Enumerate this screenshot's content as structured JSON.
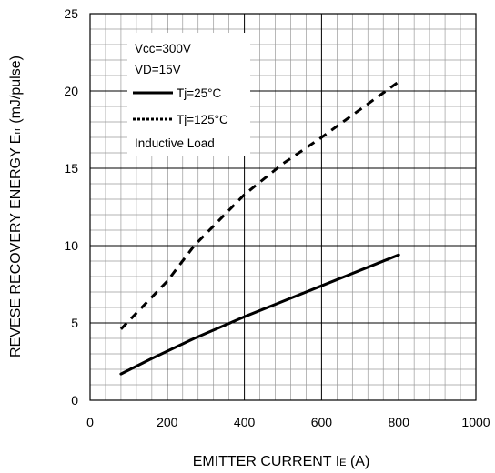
{
  "chart_data": {
    "type": "line",
    "xlabel_main": "EMITTER CURRENT I",
    "xlabel_sub": "E",
    "xlabel_unit": " (A)",
    "ylabel_main": "REVESE RECOVERY ENERGY E",
    "ylabel_sub": "rr",
    "ylabel_unit": " (mJ/pulse)",
    "xlim": [
      0,
      1000
    ],
    "ylim": [
      0,
      25
    ],
    "x_ticks": [
      "0",
      "200",
      "400",
      "600",
      "800",
      "1000"
    ],
    "y_ticks": [
      "0",
      "5",
      "10",
      "15",
      "20",
      "25"
    ],
    "grid": true,
    "legend_position": "top-left",
    "conditions": [
      "Vcc=300V",
      "VD=15V"
    ],
    "note": "Inductive Load",
    "series": [
      {
        "name": "Tj=25°C",
        "style": "solid",
        "color": "#000000",
        "x": [
          80,
          160,
          270,
          400,
          480,
          600,
          700,
          800
        ],
        "y": [
          1.7,
          2.7,
          4.0,
          5.4,
          6.2,
          7.4,
          8.4,
          9.4
        ]
      },
      {
        "name": "Tj=125°C",
        "style": "dotted",
        "color": "#000000",
        "x": [
          80,
          200,
          270,
          400,
          500,
          600,
          700,
          800
        ],
        "y": [
          4.6,
          7.7,
          10.0,
          13.3,
          15.3,
          17.0,
          18.8,
          20.6
        ]
      }
    ]
  }
}
